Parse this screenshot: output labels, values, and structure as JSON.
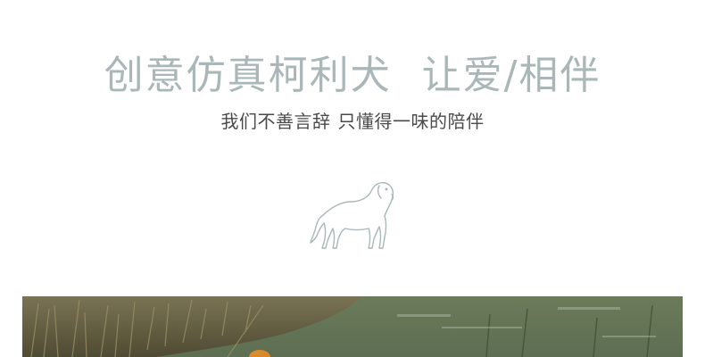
{
  "hero": {
    "title_left": "创意仿真柯利犬",
    "title_right": "让爱/相伴",
    "subtitle_left": "我们不善言辞",
    "subtitle_right": "只懂得一味的陪伴",
    "icon": "dog-outline-icon"
  },
  "photo": {
    "description_icon": "outdoor-photo"
  },
  "colors": {
    "title": "#a9b7b8",
    "subtitle": "#4a4a4a",
    "icon_stroke": "#a9b7b8",
    "background": "#ffffff"
  }
}
